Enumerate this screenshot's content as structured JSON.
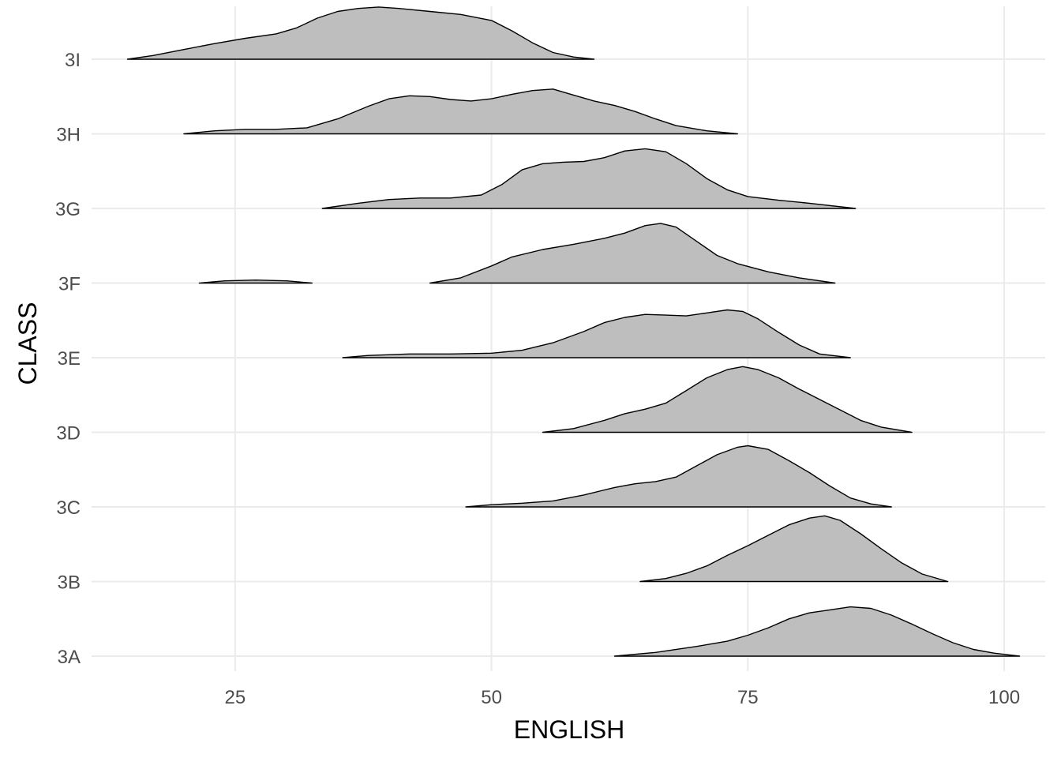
{
  "chart_data": {
    "type": "ridgeline",
    "xlabel": "ENGLISH",
    "ylabel": "CLASS",
    "xlim": [
      11,
      104
    ],
    "x_ticks": [
      "25",
      "50",
      "75",
      "100"
    ],
    "x_tick_values": [
      25,
      50,
      75,
      100
    ],
    "categories": [
      "3A",
      "3B",
      "3C",
      "3D",
      "3E",
      "3F",
      "3G",
      "3H",
      "3I"
    ],
    "grid": true,
    "fill_color": "#bebebe",
    "line_color": "#000000",
    "ridge_scale": 0.64,
    "series": [
      {
        "name": "3A",
        "segments": [
          [
            [
              62,
              0.0
            ],
            [
              66,
              0.05
            ],
            [
              70,
              0.13
            ],
            [
              73,
              0.2
            ],
            [
              75,
              0.28
            ],
            [
              77,
              0.38
            ],
            [
              79,
              0.5
            ],
            [
              81,
              0.58
            ],
            [
              83,
              0.62
            ],
            [
              85,
              0.66
            ],
            [
              87,
              0.64
            ],
            [
              89,
              0.55
            ],
            [
              91,
              0.43
            ],
            [
              93,
              0.3
            ],
            [
              95,
              0.18
            ],
            [
              97,
              0.09
            ],
            [
              99,
              0.04
            ],
            [
              101.5,
              0.0
            ]
          ]
        ]
      },
      {
        "name": "3B",
        "segments": [
          [
            [
              64.5,
              0.0
            ],
            [
              67,
              0.04
            ],
            [
              69,
              0.11
            ],
            [
              71,
              0.21
            ],
            [
              73,
              0.35
            ],
            [
              75,
              0.48
            ],
            [
              77,
              0.62
            ],
            [
              79,
              0.76
            ],
            [
              81,
              0.85
            ],
            [
              82.5,
              0.88
            ],
            [
              84,
              0.82
            ],
            [
              86,
              0.64
            ],
            [
              88,
              0.44
            ],
            [
              90,
              0.25
            ],
            [
              92,
              0.1
            ],
            [
              94.5,
              0.0
            ]
          ]
        ]
      },
      {
        "name": "3C",
        "segments": [
          [
            [
              47.5,
              0.0
            ],
            [
              50,
              0.03
            ],
            [
              53,
              0.05
            ],
            [
              56,
              0.08
            ],
            [
              59,
              0.16
            ],
            [
              62,
              0.26
            ],
            [
              64,
              0.31
            ],
            [
              66,
              0.34
            ],
            [
              68,
              0.4
            ],
            [
              70,
              0.55
            ],
            [
              72,
              0.7
            ],
            [
              74,
              0.8
            ],
            [
              75,
              0.82
            ],
            [
              77,
              0.77
            ],
            [
              79,
              0.62
            ],
            [
              81,
              0.46
            ],
            [
              83,
              0.28
            ],
            [
              85,
              0.12
            ],
            [
              87,
              0.04
            ],
            [
              89,
              0.0
            ]
          ]
        ]
      },
      {
        "name": "3D",
        "segments": [
          [
            [
              55,
              0.0
            ],
            [
              58,
              0.05
            ],
            [
              61,
              0.16
            ],
            [
              63,
              0.25
            ],
            [
              65,
              0.31
            ],
            [
              67,
              0.39
            ],
            [
              69,
              0.56
            ],
            [
              71,
              0.73
            ],
            [
              73,
              0.84
            ],
            [
              74.5,
              0.88
            ],
            [
              76,
              0.84
            ],
            [
              78,
              0.73
            ],
            [
              80,
              0.58
            ],
            [
              82,
              0.44
            ],
            [
              84,
              0.3
            ],
            [
              86,
              0.16
            ],
            [
              88,
              0.07
            ],
            [
              91,
              0.0
            ]
          ]
        ]
      },
      {
        "name": "3E",
        "segments": [
          [
            [
              35.5,
              0.0
            ],
            [
              38,
              0.03
            ],
            [
              42,
              0.05
            ],
            [
              46,
              0.05
            ],
            [
              50,
              0.06
            ],
            [
              53,
              0.1
            ],
            [
              56,
              0.2
            ],
            [
              59,
              0.35
            ],
            [
              61,
              0.47
            ],
            [
              63,
              0.54
            ],
            [
              65,
              0.58
            ],
            [
              67,
              0.57
            ],
            [
              69,
              0.56
            ],
            [
              71,
              0.6
            ],
            [
              73,
              0.64
            ],
            [
              74.5,
              0.62
            ],
            [
              76,
              0.52
            ],
            [
              78,
              0.34
            ],
            [
              80,
              0.17
            ],
            [
              82,
              0.05
            ],
            [
              85,
              0.0
            ]
          ]
        ]
      },
      {
        "name": "3F",
        "segments": [
          [
            [
              21.5,
              0.0
            ],
            [
              24,
              0.03
            ],
            [
              27,
              0.04
            ],
            [
              30,
              0.03
            ],
            [
              32.5,
              0.0
            ]
          ],
          [
            [
              44,
              0.0
            ],
            [
              47,
              0.07
            ],
            [
              50,
              0.23
            ],
            [
              52,
              0.35
            ],
            [
              55,
              0.45
            ],
            [
              58,
              0.52
            ],
            [
              61,
              0.6
            ],
            [
              63,
              0.67
            ],
            [
              65,
              0.77
            ],
            [
              66.5,
              0.8
            ],
            [
              68,
              0.75
            ],
            [
              70,
              0.56
            ],
            [
              72,
              0.37
            ],
            [
              74,
              0.26
            ],
            [
              77,
              0.15
            ],
            [
              80,
              0.07
            ],
            [
              83.5,
              0.0
            ]
          ]
        ]
      },
      {
        "name": "3G",
        "segments": [
          [
            [
              33.5,
              0.0
            ],
            [
              37,
              0.07
            ],
            [
              40,
              0.12
            ],
            [
              43,
              0.14
            ],
            [
              46,
              0.14
            ],
            [
              49,
              0.18
            ],
            [
              51,
              0.32
            ],
            [
              53,
              0.52
            ],
            [
              55,
              0.6
            ],
            [
              57,
              0.62
            ],
            [
              59,
              0.63
            ],
            [
              61,
              0.68
            ],
            [
              63,
              0.77
            ],
            [
              65,
              0.8
            ],
            [
              67,
              0.76
            ],
            [
              69,
              0.6
            ],
            [
              71,
              0.4
            ],
            [
              73,
              0.25
            ],
            [
              75,
              0.16
            ],
            [
              78,
              0.11
            ],
            [
              81,
              0.07
            ],
            [
              85.5,
              0.0
            ]
          ]
        ]
      },
      {
        "name": "3H",
        "segments": [
          [
            [
              20,
              0.0
            ],
            [
              23,
              0.04
            ],
            [
              26,
              0.06
            ],
            [
              29,
              0.06
            ],
            [
              32,
              0.08
            ],
            [
              35,
              0.2
            ],
            [
              38,
              0.37
            ],
            [
              40,
              0.47
            ],
            [
              42,
              0.51
            ],
            [
              44,
              0.5
            ],
            [
              46,
              0.46
            ],
            [
              48,
              0.44
            ],
            [
              50,
              0.47
            ],
            [
              52,
              0.53
            ],
            [
              54,
              0.58
            ],
            [
              56,
              0.6
            ],
            [
              58,
              0.52
            ],
            [
              60,
              0.44
            ],
            [
              62,
              0.38
            ],
            [
              64,
              0.3
            ],
            [
              66,
              0.2
            ],
            [
              68,
              0.11
            ],
            [
              71,
              0.04
            ],
            [
              74,
              0.0
            ]
          ]
        ]
      },
      {
        "name": "3I",
        "segments": [
          [
            [
              14.5,
              0.0
            ],
            [
              17,
              0.05
            ],
            [
              20,
              0.13
            ],
            [
              23,
              0.21
            ],
            [
              26,
              0.28
            ],
            [
              29,
              0.34
            ],
            [
              31,
              0.42
            ],
            [
              33,
              0.55
            ],
            [
              35,
              0.64
            ],
            [
              37,
              0.68
            ],
            [
              39,
              0.7
            ],
            [
              41,
              0.68
            ],
            [
              44,
              0.64
            ],
            [
              47,
              0.6
            ],
            [
              50,
              0.52
            ],
            [
              52,
              0.38
            ],
            [
              54,
              0.22
            ],
            [
              56,
              0.09
            ],
            [
              58,
              0.03
            ],
            [
              60,
              0.0
            ]
          ]
        ]
      }
    ]
  }
}
